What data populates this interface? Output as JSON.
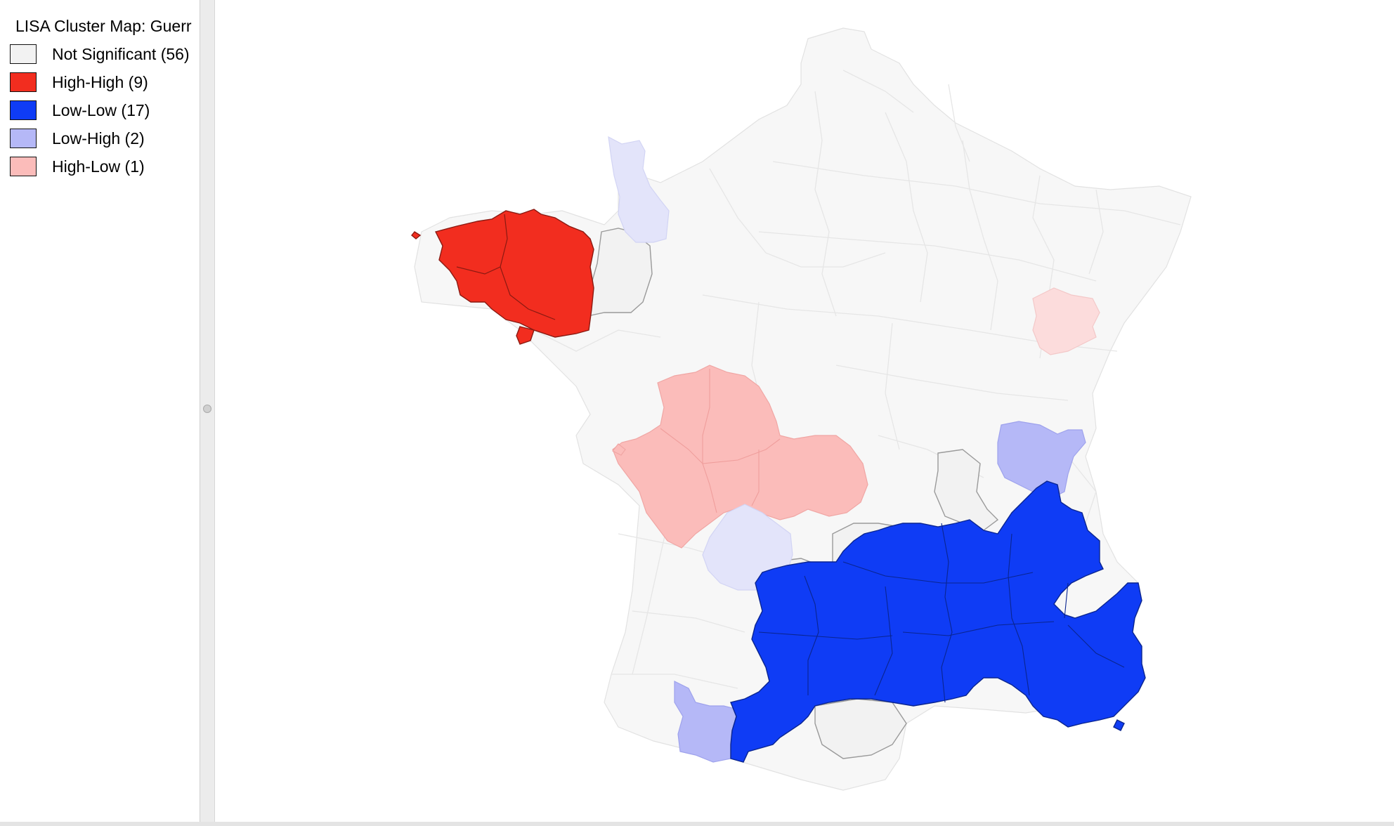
{
  "legend": {
    "title": "LISA Cluster Map: Guerr",
    "items": [
      {
        "label": "Not Significant (56)",
        "color": "#f2f2f2"
      },
      {
        "label": "High-High (9)",
        "color": "#f22d1f"
      },
      {
        "label": "Low-Low (17)",
        "color": "#0f3cf5"
      },
      {
        "label": "Low-High (2)",
        "color": "#b5b8f7"
      },
      {
        "label": "High-Low (1)",
        "color": "#fbbcba"
      }
    ]
  },
  "map": {
    "clusters": [
      "Not Significant",
      "High-High",
      "Low-Low",
      "Low-High",
      "High-Low"
    ],
    "counts": {
      "Not Significant": 56,
      "High-High": 9,
      "Low-Low": 17,
      "Low-High": 2,
      "High-Low": 1
    }
  }
}
